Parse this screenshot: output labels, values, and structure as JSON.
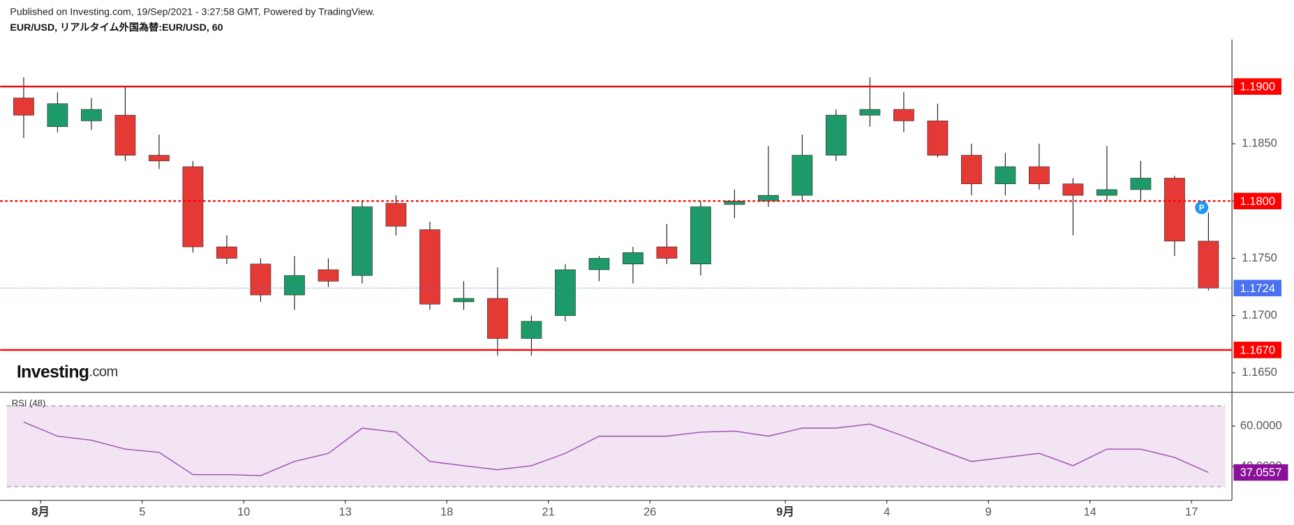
{
  "chart_data": {
    "type": "candlestick",
    "title": "Published on Investing.com, 19/Sep/2021 - 3:27:58 GMT, Powered by TradingView.",
    "subtitle": "EUR/USD, リアルタイム外国為替:EUR/USD, 60",
    "brand": "Investing",
    "brand_suffix": ".com",
    "categories": [
      null,
      "8月",
      null,
      null,
      "5",
      null,
      null,
      "10",
      null,
      null,
      "13",
      null,
      null,
      "18",
      null,
      null,
      "21",
      null,
      null,
      "26",
      null,
      null,
      null,
      "9月",
      null,
      null,
      "4",
      null,
      null,
      "9",
      null,
      null,
      "14",
      null,
      null,
      "17"
    ],
    "open": [
      1.189,
      1.1865,
      1.187,
      1.1875,
      1.184,
      1.183,
      1.176,
      1.1745,
      1.1718,
      1.174,
      1.1735,
      1.1798,
      1.1775,
      1.1712,
      1.1715,
      1.168,
      1.17,
      1.174,
      1.1745,
      1.176,
      1.1745,
      1.1797,
      1.18,
      1.1805,
      1.184,
      1.1875,
      1.188,
      1.187,
      1.184,
      1.1815,
      1.183,
      1.1815,
      1.1805,
      1.181,
      1.182,
      1.1765
    ],
    "high": [
      1.1908,
      1.1895,
      1.189,
      1.19,
      1.1858,
      1.1835,
      1.177,
      1.175,
      1.1752,
      1.175,
      1.18,
      1.1805,
      1.1782,
      1.173,
      1.1742,
      1.17,
      1.1745,
      1.1752,
      1.176,
      1.178,
      1.18,
      1.181,
      1.1848,
      1.1858,
      1.188,
      1.1908,
      1.1895,
      1.1885,
      1.185,
      1.1842,
      1.185,
      1.182,
      1.1848,
      1.1835,
      1.1822,
      1.179
    ],
    "low": [
      1.1855,
      1.186,
      1.1862,
      1.1835,
      1.1828,
      1.1755,
      1.1745,
      1.1712,
      1.1705,
      1.1725,
      1.1728,
      1.177,
      1.1705,
      1.1705,
      1.1665,
      1.1665,
      1.1695,
      1.173,
      1.1728,
      1.1745,
      1.1735,
      1.1785,
      1.1795,
      1.18,
      1.1835,
      1.1865,
      1.186,
      1.1838,
      1.1805,
      1.1805,
      1.181,
      1.177,
      1.18,
      1.18,
      1.1752,
      1.1722
    ],
    "close": [
      1.1875,
      1.1885,
      1.188,
      1.184,
      1.1835,
      1.176,
      1.175,
      1.1718,
      1.1735,
      1.173,
      1.1795,
      1.1778,
      1.171,
      1.1715,
      1.168,
      1.1695,
      1.174,
      1.175,
      1.1755,
      1.175,
      1.1795,
      1.18,
      1.1805,
      1.184,
      1.1875,
      1.188,
      1.187,
      1.184,
      1.1815,
      1.183,
      1.1815,
      1.1805,
      1.181,
      1.182,
      1.1765,
      1.1724
    ],
    "up_color": "#1e9a6a",
    "down_color": "#e53935",
    "ylim": [
      1.1633,
      1.1941
    ],
    "yticks": [
      {
        "value": 1.165,
        "label": "1.1650"
      },
      {
        "value": 1.17,
        "label": "1.1700"
      },
      {
        "value": 1.175,
        "label": "1.1750"
      },
      {
        "value": 1.18,
        "label": "1.1800"
      },
      {
        "value": 1.185,
        "label": "1.1850"
      },
      {
        "value": 1.19,
        "label": "1.1900"
      }
    ],
    "levels": [
      {
        "value": 1.19,
        "label": "1.1900",
        "style": "solid"
      },
      {
        "value": 1.18,
        "label": "1.1800",
        "style": "dashed"
      },
      {
        "value": 1.167,
        "label": "1.1670",
        "style": "solid"
      }
    ],
    "level_color": "#ff0000",
    "current": 1.1724,
    "current_color": "#4a72f0",
    "marker": "P",
    "rsi": {
      "name": "RSI (48)",
      "values": [
        62,
        55,
        53,
        48.6,
        47,
        36,
        36,
        35.5,
        42.5,
        46.5,
        59,
        57,
        42.5,
        40.4,
        38.4,
        40.4,
        46.5,
        55,
        55,
        55,
        57,
        57.5,
        55,
        59,
        59,
        61,
        55,
        48.6,
        42.5,
        44.5,
        46.5,
        40.4,
        48.6,
        48.6,
        44.5,
        37.0557
      ],
      "ylim": [
        23.3,
        76.7
      ],
      "yticks": [
        {
          "value": 60,
          "label": "60.0000"
        },
        {
          "value": 40,
          "label": "40.0000"
        }
      ],
      "bands": [
        30,
        70
      ],
      "color": "#9c4fb0",
      "fill": "#f2e4f3",
      "last_color": "#8a0f99"
    }
  }
}
